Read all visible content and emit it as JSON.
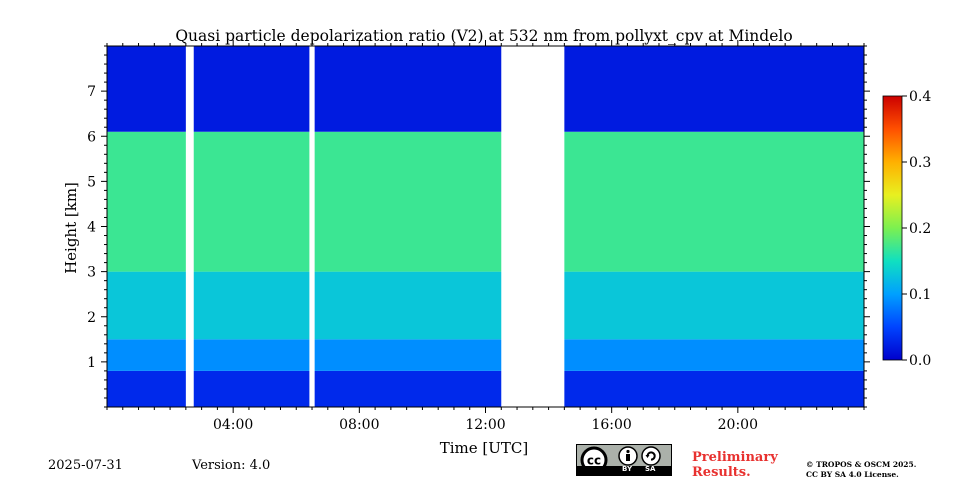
{
  "chart_data": {
    "type": "heatmap",
    "title": "Quasi particle depolarization ratio (V2) at 532 nm from pollyxt_cpv at Mindelo",
    "xlabel": "Time [UTC]",
    "ylabel": "Height [km]",
    "xlim_hours": [
      0,
      24
    ],
    "ylim_km": [
      0,
      8
    ],
    "x_ticks": [
      "04:00",
      "08:00",
      "12:00",
      "16:00",
      "20:00"
    ],
    "x_tick_hours": [
      4,
      8,
      12,
      16,
      20
    ],
    "y_ticks": [
      1,
      2,
      3,
      4,
      5,
      6,
      7
    ],
    "colorbar": {
      "min": 0.0,
      "max": 0.4,
      "ticks": [
        "0.0",
        "0.1",
        "0.2",
        "0.3",
        "0.4"
      ],
      "tick_values": [
        0.0,
        0.1,
        0.2,
        0.3,
        0.4
      ],
      "colormap": "jet"
    },
    "no_data_intervals_utc": [
      [
        "02:30",
        "02:45"
      ],
      [
        "06:25",
        "06:35"
      ],
      [
        "12:30",
        "14:30"
      ]
    ],
    "layers": [
      {
        "height_km": [
          0,
          0.8
        ],
        "value": 0.03
      },
      {
        "height_km": [
          0.8,
          1.5
        ],
        "value": 0.09
      },
      {
        "height_km": [
          1.5,
          3.0
        ],
        "value": 0.13
      },
      {
        "height_km": [
          3.0,
          6.1
        ],
        "value": 0.17
      },
      {
        "height_km": [
          6.1,
          8.0
        ],
        "value": 0.02
      }
    ]
  },
  "footer": {
    "date": "2025-07-31",
    "version": "Version: 4.0",
    "preliminary_line1": "Preliminary",
    "preliminary_line2": "Results.",
    "copyright_line1": "© TROPOS & OSCM 2025.",
    "copyright_line2": "CC BY SA 4.0 License.",
    "license_badge": {
      "by": "BY",
      "sa": "SA"
    }
  }
}
